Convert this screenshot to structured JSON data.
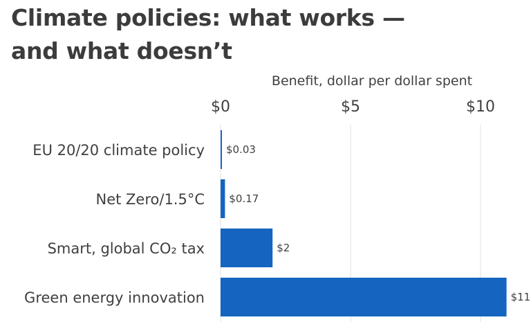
{
  "title_lines": [
    "Climate policies: what works —",
    "and what doesn’t"
  ],
  "chart_data": {
    "type": "bar",
    "orientation": "horizontal",
    "xlabel": "Benefit, dollar per dollar spent",
    "categories": [
      "EU 20/20 climate policy",
      "Net Zero/1.5°C",
      "Smart, global CO₂ tax",
      "Green energy innovation"
    ],
    "values": [
      0.03,
      0.17,
      2,
      11
    ],
    "value_labels": [
      "$0.03",
      "$0.17",
      "$2",
      "$11"
    ],
    "ticks": [
      0,
      5,
      10
    ],
    "tick_labels": [
      "$0",
      "$5",
      "$10"
    ],
    "xlim": [
      0,
      11.3
    ],
    "grid": true,
    "bar_color": "#1565c0",
    "grid_color": "#e6e6e6"
  }
}
